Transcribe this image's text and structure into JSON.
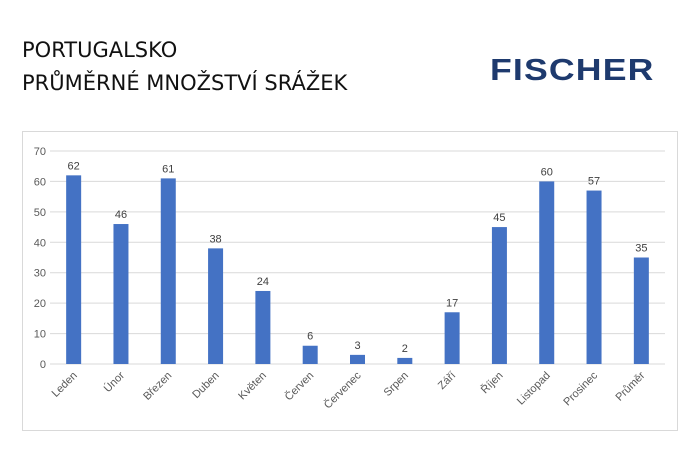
{
  "header": {
    "title_line1": "PORTUGALSKO",
    "title_line2": "PRŮMĚRNÉ MNOŽSTVÍ SRÁŽEK",
    "logo_text": "FISCHER"
  },
  "colors": {
    "bar": "#4472c4",
    "logo": "#1e3a6e",
    "grid": "#d9d9d9"
  },
  "chart_data": {
    "type": "bar",
    "categories": [
      "Leden",
      "Únor",
      "Březen",
      "Duben",
      "Květen",
      "Červen",
      "Červenec",
      "Srpen",
      "Září",
      "Říjen",
      "Listopad",
      "Prosinec",
      "Průměr"
    ],
    "values": [
      62,
      46,
      61,
      38,
      24,
      6,
      3,
      2,
      17,
      45,
      60,
      57,
      35
    ],
    "title": "",
    "xlabel": "",
    "ylabel": "",
    "ylim": [
      0,
      70
    ],
    "yticks": [
      0,
      10,
      20,
      30,
      40,
      50,
      60,
      70
    ],
    "grid": true,
    "data_labels": true,
    "legend": "none"
  }
}
